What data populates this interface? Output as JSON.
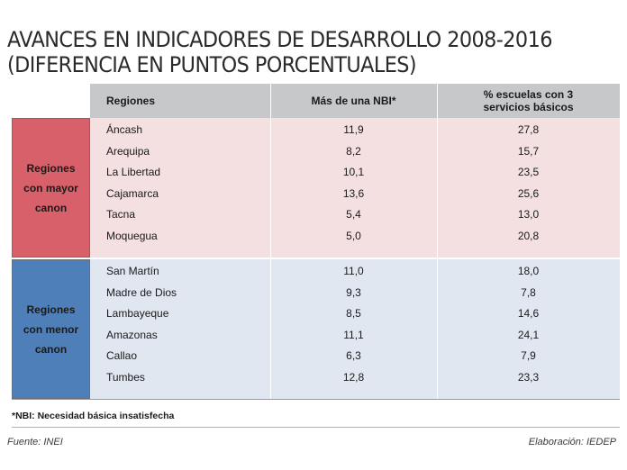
{
  "title_line1": "AVANCES EN INDICADORES DE DESARROLLO 2008-2016",
  "title_line2": "(DIFERENCIA EN PUNTOS PORCENTUALES)",
  "chart_data": {
    "type": "table",
    "columns": [
      "Regiones",
      "Más de una NBI*",
      "% escuelas con 3 servicios básicos"
    ],
    "groups": [
      {
        "label": [
          "Regiones",
          "con mayor",
          "canon"
        ],
        "color": "#d7606a",
        "rows": [
          {
            "region": "Áncash",
            "nbi": "11,9",
            "escuelas": "27,8"
          },
          {
            "region": "Arequipa",
            "nbi": "8,2",
            "escuelas": "15,7"
          },
          {
            "region": "La Libertad",
            "nbi": "10,1",
            "escuelas": "23,5"
          },
          {
            "region": "Cajamarca",
            "nbi": "13,6",
            "escuelas": "25,6"
          },
          {
            "region": "Tacna",
            "nbi": "5,4",
            "escuelas": "13,0"
          },
          {
            "region": "Moquegua",
            "nbi": "5,0",
            "escuelas": "20,8"
          }
        ]
      },
      {
        "label": [
          "Regiones",
          "con menor",
          "canon"
        ],
        "color": "#4e7fb8",
        "rows": [
          {
            "region": "San Martín",
            "nbi": "11,0",
            "escuelas": "18,0"
          },
          {
            "region": "Madre de Dios",
            "nbi": "9,3",
            "escuelas": "7,8"
          },
          {
            "region": "Lambayeque",
            "nbi": "8,5",
            "escuelas": "14,6"
          },
          {
            "region": "Amazonas",
            "nbi": "11,1",
            "escuelas": "24,1"
          },
          {
            "region": "Callao",
            "nbi": "6,3",
            "escuelas": "7,9"
          },
          {
            "region": "Tumbes",
            "nbi": "12,8",
            "escuelas": "23,3"
          }
        ]
      }
    ]
  },
  "header": {
    "col_region": "Regiones",
    "col_nbi": "Más de una NBI*",
    "col_escuelas_1": "% escuelas con 3",
    "col_escuelas_2": "servicios básicos"
  },
  "footnote": "*NBI: Necesidad básica insatisfecha",
  "source": "Fuente: INEI",
  "credit": "Elaboración: IEDEP"
}
